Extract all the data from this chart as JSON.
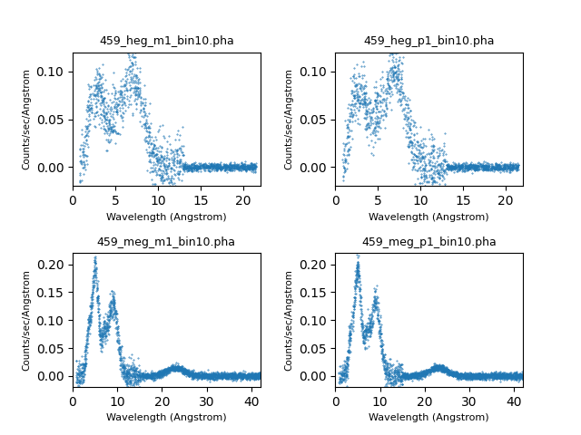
{
  "titles": [
    "459_heg_m1_bin10.pha",
    "459_heg_p1_bin10.pha",
    "459_meg_m1_bin10.pha",
    "459_meg_p1_bin10.pha"
  ],
  "xlabel": "Wavelength (Angstrom)",
  "ylabel": "Counts/sec/Angstrom",
  "heg_xlim": [
    0,
    22
  ],
  "heg_ylim": [
    -0.02,
    0.12
  ],
  "meg_xlim": [
    0,
    42
  ],
  "meg_ylim": [
    -0.02,
    0.22
  ],
  "heg_xticks": [
    0,
    5,
    10,
    15,
    20
  ],
  "meg_xticks": [
    0,
    10,
    20,
    30,
    40
  ],
  "line_color": "#1f77b4",
  "figsize": [
    6.4,
    4.8
  ],
  "dpi": 100
}
